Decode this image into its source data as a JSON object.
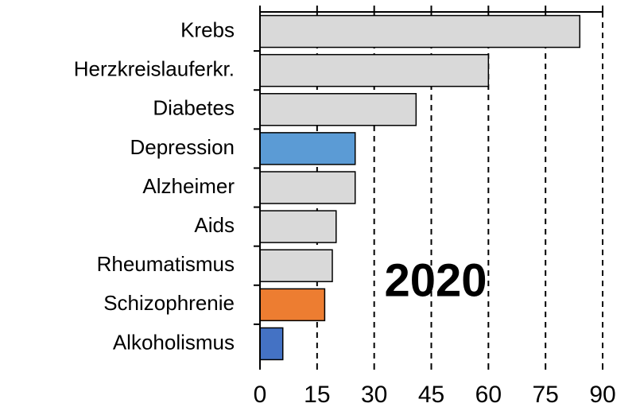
{
  "chart_data": {
    "type": "bar",
    "orientation": "horizontal",
    "categories": [
      "Krebs",
      "Herzkreislauferkr.",
      "Diabetes",
      "Depression",
      "Alzheimer",
      "Aids",
      "Rheumatismus",
      "Schizophrenie",
      "Alkoholismus"
    ],
    "values": [
      84,
      60,
      41,
      25,
      25,
      20,
      19,
      17,
      6
    ],
    "colors": [
      "#d9d9d9",
      "#d9d9d9",
      "#d9d9d9",
      "#5b9bd5",
      "#d9d9d9",
      "#d9d9d9",
      "#d9d9d9",
      "#ed7d31",
      "#4472c4"
    ],
    "xlim": [
      0,
      90
    ],
    "xticks": [
      0,
      15,
      30,
      45,
      60,
      75,
      90
    ],
    "grid": true,
    "annotation": "2020",
    "annotation_color": "#5b9bd5"
  }
}
